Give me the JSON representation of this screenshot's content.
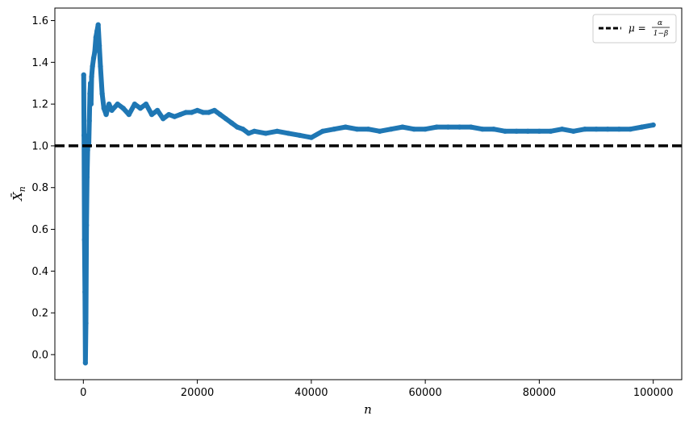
{
  "chart_data": {
    "type": "scatter",
    "xlabel": "n",
    "ylabel": "X̄",
    "ylabel_sub": "n",
    "xlim": [
      -5000,
      105000
    ],
    "ylim": [
      -0.12,
      1.66
    ],
    "xticks": [
      0,
      20000,
      40000,
      60000,
      80000,
      100000
    ],
    "xtick_labels": [
      "0",
      "20000",
      "40000",
      "60000",
      "80000",
      "100000"
    ],
    "yticks": [
      0.0,
      0.2,
      0.4,
      0.6,
      0.8,
      1.0,
      1.2,
      1.4,
      1.6
    ],
    "ytick_labels": [
      "0.0",
      "0.2",
      "0.4",
      "0.6",
      "0.8",
      "1.0",
      "1.2",
      "1.4",
      "1.6"
    ],
    "grid": false,
    "series": [
      {
        "kind": "scatter",
        "color": "#1f77b4",
        "x": [
          60,
          120,
          200,
          280,
          360,
          450,
          550,
          650,
          750,
          850,
          950,
          1050,
          1150,
          1250,
          1350,
          1450,
          1600,
          1800,
          2000,
          2200,
          2400,
          2600,
          2800,
          3000,
          3300,
          3600,
          4000,
          4500,
          5000,
          6000,
          7000,
          8000,
          9000,
          10000,
          11000,
          12000,
          13000,
          14000,
          15000,
          16000,
          17000,
          18000,
          19000,
          20000,
          21000,
          22000,
          23000,
          24000,
          25000,
          26000,
          27000,
          28000,
          29000,
          30000,
          32000,
          34000,
          36000,
          38000,
          40000,
          42000,
          44000,
          46000,
          48000,
          50000,
          52000,
          54000,
          56000,
          58000,
          60000,
          62000,
          64000,
          66000,
          68000,
          70000,
          72000,
          74000,
          76000,
          78000,
          80000,
          82000,
          84000,
          86000,
          88000,
          90000,
          92000,
          94000,
          96000,
          98000,
          100000
        ],
        "y": [
          1.34,
          1.05,
          0.55,
          0.3,
          -0.04,
          0.15,
          0.62,
          0.85,
          0.98,
          1.05,
          1.0,
          1.12,
          1.25,
          1.3,
          1.2,
          1.33,
          1.38,
          1.42,
          1.45,
          1.52,
          1.55,
          1.58,
          1.48,
          1.38,
          1.25,
          1.18,
          1.15,
          1.2,
          1.17,
          1.2,
          1.18,
          1.15,
          1.2,
          1.18,
          1.2,
          1.15,
          1.17,
          1.13,
          1.15,
          1.14,
          1.15,
          1.16,
          1.16,
          1.17,
          1.16,
          1.16,
          1.17,
          1.15,
          1.13,
          1.11,
          1.09,
          1.08,
          1.06,
          1.07,
          1.06,
          1.07,
          1.06,
          1.05,
          1.04,
          1.07,
          1.08,
          1.09,
          1.08,
          1.08,
          1.07,
          1.08,
          1.09,
          1.08,
          1.08,
          1.09,
          1.09,
          1.09,
          1.09,
          1.08,
          1.08,
          1.07,
          1.07,
          1.07,
          1.07,
          1.07,
          1.08,
          1.07,
          1.08,
          1.08,
          1.08,
          1.08,
          1.08,
          1.09,
          1.1
        ]
      },
      {
        "kind": "hline",
        "y": 1.0,
        "color": "#000000",
        "style": "dashed",
        "name": "μ = α / (1−β)"
      }
    ],
    "legend": {
      "placement": "top-right",
      "label_prefix": "μ =",
      "label_num": "α",
      "label_den": "1−β"
    }
  }
}
